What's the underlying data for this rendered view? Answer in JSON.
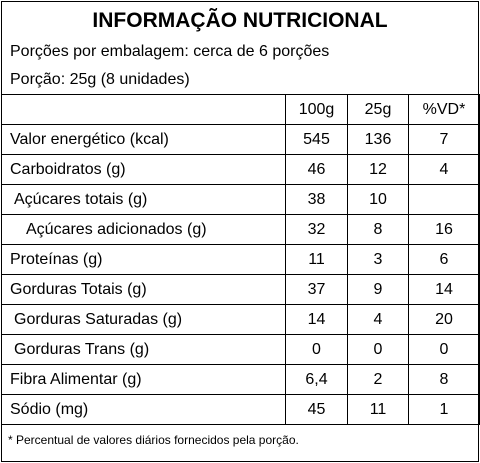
{
  "title": "INFORMAÇÃO NUTRICIONAL",
  "servings_per_package": "Porções por embalagem: cerca de 6 porções",
  "serving_size": "Porção: 25g (8 unidades)",
  "table": {
    "header": [
      "100g",
      "25g",
      "%VD*"
    ],
    "rows": [
      [
        "Valor energético (kcal)",
        545,
        136,
        7
      ],
      [
        "Carboidratos (g)",
        46,
        12,
        4
      ],
      [
        "Açúcares totais (g)",
        38,
        10,
        null
      ],
      [
        "Açúcares adicionados (g)",
        32,
        8,
        16
      ],
      [
        "Proteínas (g)",
        11,
        3,
        6
      ],
      [
        "Gorduras Totais (g)",
        37,
        9,
        14
      ],
      [
        "Gorduras Saturadas (g)",
        14,
        4,
        20
      ],
      [
        "Gorduras Trans (g)",
        0,
        0,
        0
      ],
      [
        "Fibra Alimentar (g)",
        "6,4",
        2,
        8
      ],
      [
        "Sódio (mg)",
        45,
        11,
        1
      ]
    ]
  },
  "footnote": "* Percentual de valores diários fornecidos pela porção."
}
